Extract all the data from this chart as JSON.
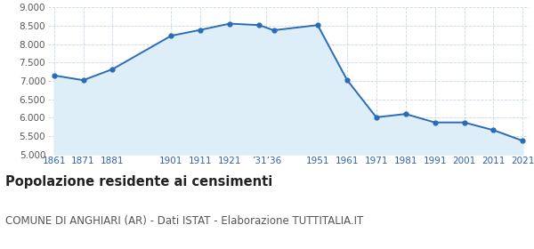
{
  "years": [
    1861,
    1871,
    1881,
    1901,
    1911,
    1921,
    1931,
    1936,
    1951,
    1961,
    1971,
    1981,
    1991,
    2001,
    2011,
    2021
  ],
  "population": [
    7150,
    7020,
    7320,
    8230,
    8390,
    8560,
    8520,
    8380,
    8520,
    7030,
    6010,
    6100,
    5870,
    5870,
    5660,
    5370
  ],
  "x_tick_positions": [
    1861,
    1871,
    1881,
    1901,
    1911,
    1921,
    1933.5,
    1951,
    1961,
    1971,
    1981,
    1991,
    2001,
    2011,
    2021
  ],
  "x_tick_labels": [
    "1861",
    "1871",
    "1881",
    "1901",
    "1911",
    "1921",
    "’31’36",
    "1951",
    "1961",
    "1971",
    "1981",
    "1991",
    "2001",
    "2011",
    "2021"
  ],
  "ylim": [
    5000,
    9000
  ],
  "yticks": [
    5000,
    5500,
    6000,
    6500,
    7000,
    7500,
    8000,
    8500,
    9000
  ],
  "line_color": "#2b6cb8",
  "fill_color": "#ddeef8",
  "marker_color": "#2b6cb8",
  "grid_color": "#c8d8e8",
  "bg_color": "#ffffff",
  "title": "Popolazione residente ai censimenti",
  "subtitle": "COMUNE DI ANGHIARI (AR) - Dati ISTAT - Elaborazione TUTTITALIA.IT",
  "title_fontsize": 10.5,
  "subtitle_fontsize": 8.5,
  "tick_fontsize": 7.5,
  "x_color": "#3060b0",
  "y_color": "#555555"
}
